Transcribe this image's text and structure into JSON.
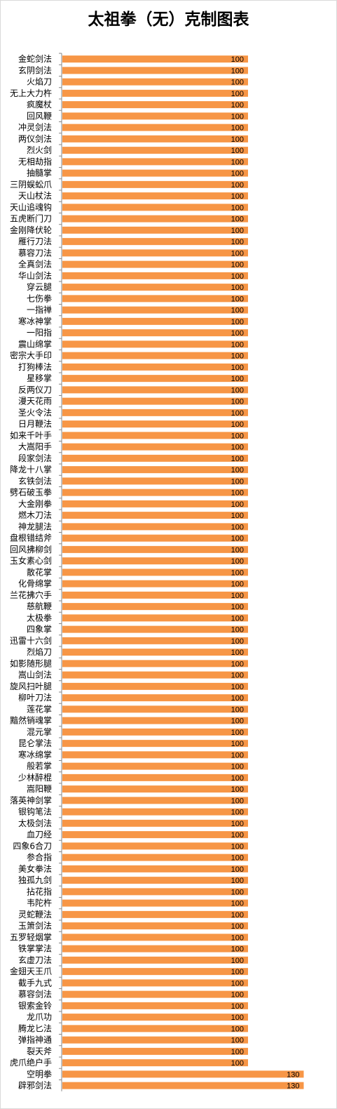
{
  "chart_data": {
    "type": "bar",
    "orientation": "horizontal",
    "title": "太祖拳（无）克制图表",
    "xlabel": "",
    "ylabel": "",
    "xlim": [
      0,
      130
    ],
    "grid": false,
    "legend": "none",
    "bar_color": "#F79646",
    "categories": [
      "金蛇剑法",
      "玄阴剑法",
      "火焰刀",
      "无上大力杵",
      "疯魔杖",
      "回风鞭",
      "冲灵剑法",
      "两仪剑法",
      "烈火剑",
      "无相劫指",
      "抽髓掌",
      "三阴蜈蚣爪",
      "天山杖法",
      "天山追魂钩",
      "五虎断门刀",
      "金刚降伏轮",
      "雁行刀法",
      "慕容刀法",
      "全真剑法",
      "华山剑法",
      "穿云腿",
      "七伤拳",
      "一指禅",
      "寒冰神掌",
      "一阳指",
      "震山绵掌",
      "密宗大手印",
      "打狗棒法",
      "星移掌",
      "反两仪刀",
      "漫天花雨",
      "圣火令法",
      "日月鞭法",
      "如来千叶手",
      "大嵩阳手",
      "段家剑法",
      "降龙十八掌",
      "玄铁剑法",
      "劈石破玉拳",
      "大金刚拳",
      "燃木刀法",
      "神龙腿法",
      "盘根错结斧",
      "回风拂柳剑",
      "玉女素心剑",
      "散花掌",
      "化骨绵掌",
      "兰花拂穴手",
      "慈航鞭",
      "太极拳",
      "四象掌",
      "迅雷十六剑",
      "烈焰刀",
      "如影随形腿",
      "嵩山剑法",
      "旋风扫叶腿",
      "柳叶刀法",
      "莲花掌",
      "黯然销魂掌",
      "混元掌",
      "昆仑掌法",
      "寒冰绵掌",
      "般若掌",
      "少林醉棍",
      "嵩阳鞭",
      "落英神剑掌",
      "银钩笔法",
      "太极剑法",
      "血刀经",
      "四象6合刀",
      "参合指",
      "美女拳法",
      "独孤九剑",
      "拈花指",
      "韦陀杵",
      "灵蛇鞭法",
      "玉箫剑法",
      "五罗轻烟掌",
      "铁掌掌法",
      "玄虚刀法",
      "金翅天王爪",
      "截手九式",
      "慕容剑法",
      "银索金铃",
      "龙爪功",
      "腾龙匕法",
      "弹指神通",
      "裂天斧",
      "虎爪绝户手",
      "空明拳",
      "辟邪剑法"
    ],
    "values": [
      100,
      100,
      100,
      100,
      100,
      100,
      100,
      100,
      100,
      100,
      100,
      100,
      100,
      100,
      100,
      100,
      100,
      100,
      100,
      100,
      100,
      100,
      100,
      100,
      100,
      100,
      100,
      100,
      100,
      100,
      100,
      100,
      100,
      100,
      100,
      100,
      100,
      100,
      100,
      100,
      100,
      100,
      100,
      100,
      100,
      100,
      100,
      100,
      100,
      100,
      100,
      100,
      100,
      100,
      100,
      100,
      100,
      100,
      100,
      100,
      100,
      100,
      100,
      100,
      100,
      100,
      100,
      100,
      100,
      100,
      100,
      100,
      100,
      100,
      100,
      100,
      100,
      100,
      100,
      100,
      100,
      100,
      100,
      100,
      100,
      100,
      100,
      100,
      100,
      130,
      130
    ]
  }
}
